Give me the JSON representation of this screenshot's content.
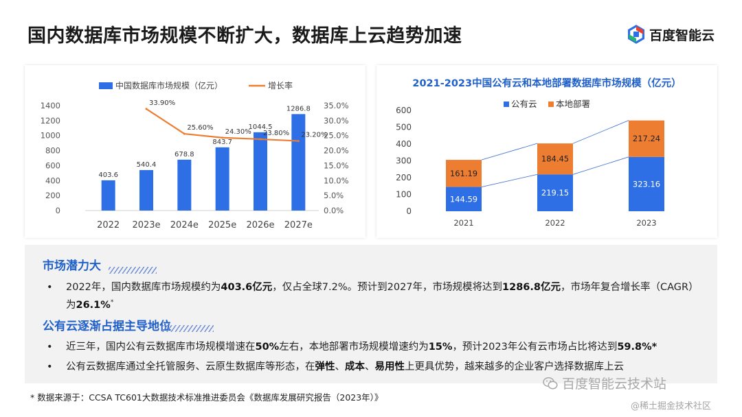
{
  "page": {
    "title": "国内数据库市场规模不断扩大，数据库上云趋势加速",
    "logo_text": "百度智能云"
  },
  "chart_data": [
    {
      "type": "bar",
      "title": "",
      "categories": [
        "2022",
        "2023e",
        "2024e",
        "2025e",
        "2026e",
        "2027e"
      ],
      "series": [
        {
          "name": "中国数据库市场规模（亿元）",
          "kind": "bar",
          "axis": "left",
          "color": "#2f6fe5",
          "values": [
            403.6,
            540.4,
            678.8,
            843.7,
            1044.5,
            1286.8
          ],
          "labels": [
            "403.6",
            "540.4",
            "678.8",
            "843.7",
            "1044.5",
            "1286.8"
          ]
        },
        {
          "name": "增长率",
          "kind": "line",
          "axis": "right",
          "color": "#ed7d31",
          "values": [
            null,
            33.9,
            25.6,
            24.3,
            23.8,
            23.2
          ],
          "labels": [
            "",
            "33.90%",
            "25.60%",
            "24.30%",
            "23.80%",
            "23.20%"
          ]
        }
      ],
      "ylim_left": [
        0,
        1400
      ],
      "ylim_right": [
        0,
        35
      ],
      "y_ticks_left": [
        "0",
        "200",
        "400",
        "600",
        "800",
        "1000",
        "1200",
        "1400"
      ],
      "y_ticks_right": [
        "0.0%",
        "5.0%",
        "10.0%",
        "15.0%",
        "20.0%",
        "25.0%",
        "30.0%",
        "35.0%"
      ],
      "legend_position": "top",
      "grid": false
    },
    {
      "type": "bar",
      "stacked": true,
      "title": "2021-2023中国公有云和本地部署数据库市场规模（亿元）",
      "categories": [
        "2021",
        "2022",
        "2023"
      ],
      "series": [
        {
          "name": "公有云",
          "color": "#2f6fe5",
          "values": [
            144.59,
            219.15,
            323.16
          ],
          "labels": [
            "144.59",
            "219.15",
            "323.16"
          ]
        },
        {
          "name": "本地部署",
          "color": "#ed7d31",
          "values": [
            161.19,
            184.45,
            217.24
          ],
          "labels": [
            "161.19",
            "184.45",
            "217.24"
          ]
        }
      ],
      "ylim": [
        0,
        600
      ],
      "y_ticks": [
        "0",
        "100",
        "200",
        "300",
        "400",
        "500",
        "600"
      ],
      "legend_position": "top",
      "grid": false,
      "connector_lines": true
    }
  ],
  "info": {
    "section1_title": "市场潜力大",
    "section1_bullet": {
      "t1": "2022年，国内数据库市场规模约为",
      "b1": "403.6亿元",
      "t2": "，仅占全球7.2%。预计到2027年，市场规模将达到",
      "b2": "1286.8亿元",
      "t3": "，市场年复合增长率（CAGR）为",
      "b3": "26.1%",
      "sup": "*"
    },
    "section2_title": "公有云逐渐占据主导地位",
    "section2_bullet1": {
      "t1": "近三年，国内公有云数据库市场规模增速在",
      "b1": "50%",
      "t2": "左右，本地部署市场规模增速约为",
      "b2": "15%",
      "t3": "，预计2023年公有云市场占比将达到",
      "b3": "59.8%*"
    },
    "section2_bullet2": {
      "t1": "公有云数据库通过全托管服务、云原生数据库等形态，在",
      "b1": "弹性",
      "t2": "、",
      "b2": "成本",
      "t3": "、",
      "b3": "易用性",
      "t4": "上更具优势，越来越多的企业客户选择数据库上云"
    },
    "bullet_char": "•"
  },
  "footnote": "* 数据来源于：CCSA TC601大数据技术标准推进委员会《数据库发展研究报告（2023年）》",
  "watermarks": {
    "wechat": "百度智能云技术站",
    "juejin": "@稀土掘金技术社区"
  },
  "colors": {
    "blue": "#2f6fe5",
    "orange": "#ed7d31",
    "section_title": "#1f5fc9"
  }
}
